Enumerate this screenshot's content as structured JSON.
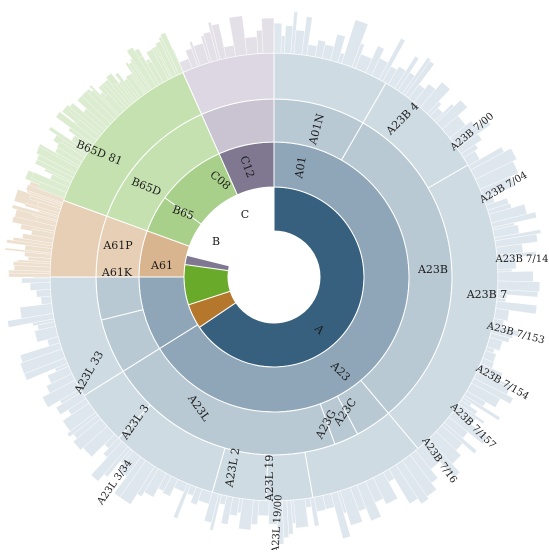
{
  "chart_data": {
    "type": "sunburst",
    "title": "",
    "colors": {
      "A": "#36607d",
      "A_ring2": "#8fa6b8",
      "A_ring3": "#b9c9d4",
      "A_ring4": "#cfdbe3",
      "A_outer": "#dfe7ee",
      "B": "#b4772c",
      "B_ring2": "#d8b58e",
      "B_ring3": "#e6cfb5",
      "B_outer": "#eee0cf",
      "C": "#6aaa2a",
      "C_ring2": "#a9d08a",
      "C_ring3": "#c6e1b0",
      "C_outer": "#dcecd0",
      "other": "#7f7890",
      "line": "#ffffff"
    },
    "sections": [
      {
        "code": "A",
        "share": 0.754
      },
      {
        "code": "B",
        "share": 0.067
      },
      {
        "code": "C",
        "share": 0.117
      },
      {
        "code": "other",
        "share": 0.012
      }
    ],
    "labels": {
      "ring1": [
        "A",
        "B",
        "C"
      ],
      "ring2": [
        "A23",
        "A61",
        "B65",
        "C08",
        "C12"
      ],
      "ring3": [
        "A01",
        "A23B",
        "A23C",
        "A23G",
        "A23L",
        "A61K",
        "A61P",
        "B65D"
      ],
      "ring4": [
        "A01N",
        "A23B 4",
        "A23B 7",
        "A23L 2",
        "A23L 3",
        "A23L 19",
        "A23L 33",
        "B65D 81"
      ],
      "outer": [
        "A23B 7/00",
        "A23B 7/04",
        "A23B 7/14",
        "A23B 7/153",
        "A23B 7/154",
        "A23B 7/157",
        "A23B 7/16",
        "A23L 19/00",
        "A23L 3/34"
      ]
    }
  }
}
